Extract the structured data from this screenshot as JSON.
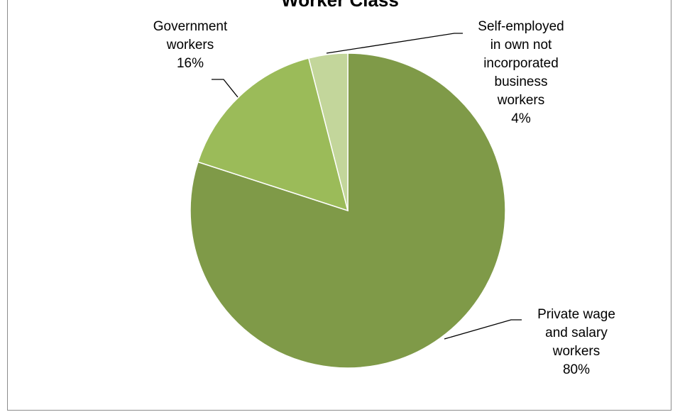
{
  "chart_data": {
    "type": "pie",
    "title": "Worker Class",
    "start_angle_deg": 0,
    "direction": "clockwise",
    "legend": "none",
    "slices": [
      {
        "label_lines": [
          "Private wage",
          "and salary",
          "workers",
          "80%"
        ],
        "value": 80,
        "color": "#7f9a48"
      },
      {
        "label_lines": [
          "Government",
          "workers",
          "16%"
        ],
        "value": 16,
        "color": "#9bbb59"
      },
      {
        "label_lines": [
          "Self-employed",
          "in own not",
          "incorporated",
          "business",
          "workers",
          "4%"
        ],
        "value": 4,
        "color": "#c3d69b"
      }
    ]
  }
}
